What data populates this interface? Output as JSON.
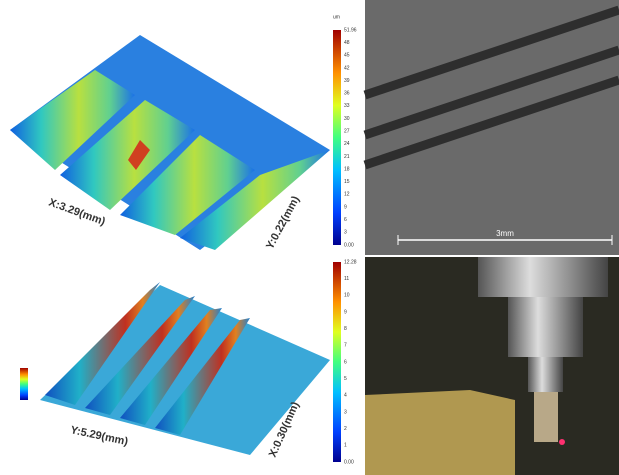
{
  "panels": {
    "surface_top": {
      "x_label": "X:3.29(mm)",
      "y_label": "Y:0.22(mm)",
      "unit": "um",
      "colorbar_ticks": [
        "51.96",
        "48",
        "45",
        "42",
        "39",
        "36",
        "33",
        "30",
        "27",
        "24",
        "21",
        "18",
        "15",
        "12",
        "9",
        "6",
        "3",
        "0.00"
      ]
    },
    "sem": {
      "scale_label": "3mm"
    },
    "surface_bottom": {
      "x_label": "Y:5.29(mm)",
      "y_label": "X:0.30(mm)",
      "colorbar_ticks": [
        "12.28",
        "11",
        "10",
        "9",
        "8",
        "7",
        "6",
        "5",
        "4",
        "3",
        "2",
        "1",
        "0.00"
      ]
    }
  }
}
